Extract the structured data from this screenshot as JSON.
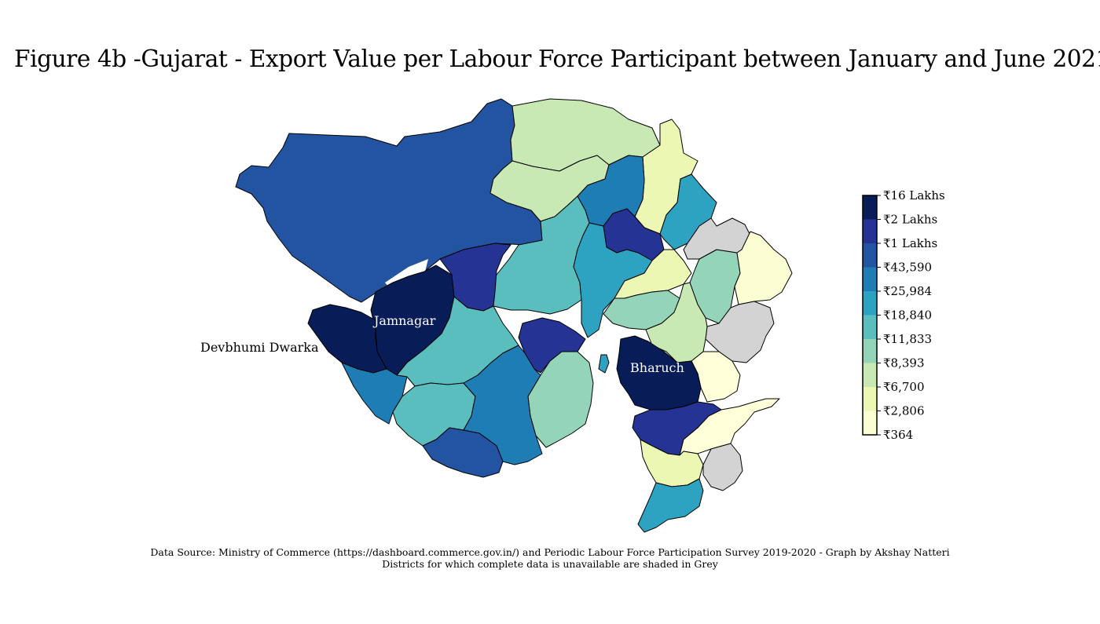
{
  "title": "Figure 4b -Gujarat - Export Value per Labour Force Participant between January and June 2021",
  "map_labels": {
    "devbhumi_dwarka": "Devbhumi Dwarka",
    "jamnagar": "Jamnagar",
    "bharuch": "Bharuch"
  },
  "legend": {
    "labels": [
      "₹16 Lakhs",
      "₹2 Lakhs",
      "₹1 Lakhs",
      "₹43,590",
      "₹25,984",
      "₹18,840",
      "₹11,833",
      "₹8,393",
      "₹6,700",
      "₹2,806",
      "₹364"
    ],
    "colors": [
      "#081d58",
      "#253494",
      "#2354a2",
      "#1f7db6",
      "#2ea2c1",
      "#5abebf",
      "#94d5b9",
      "#c8e9b4",
      "#ecf7b3",
      "#fbfdd2",
      "#ffffd9"
    ]
  },
  "no_data_color": "#d3d3d3",
  "footer": {
    "source": "Data Source:  Ministry of Commerce (https://dashboard.commerce.gov.in/) and Periodic Labour Force Participation Survey 2019-2020 - Graph by Akshay Natteri",
    "note": "Districts for which complete data is unavailable are shaded in Grey"
  }
}
